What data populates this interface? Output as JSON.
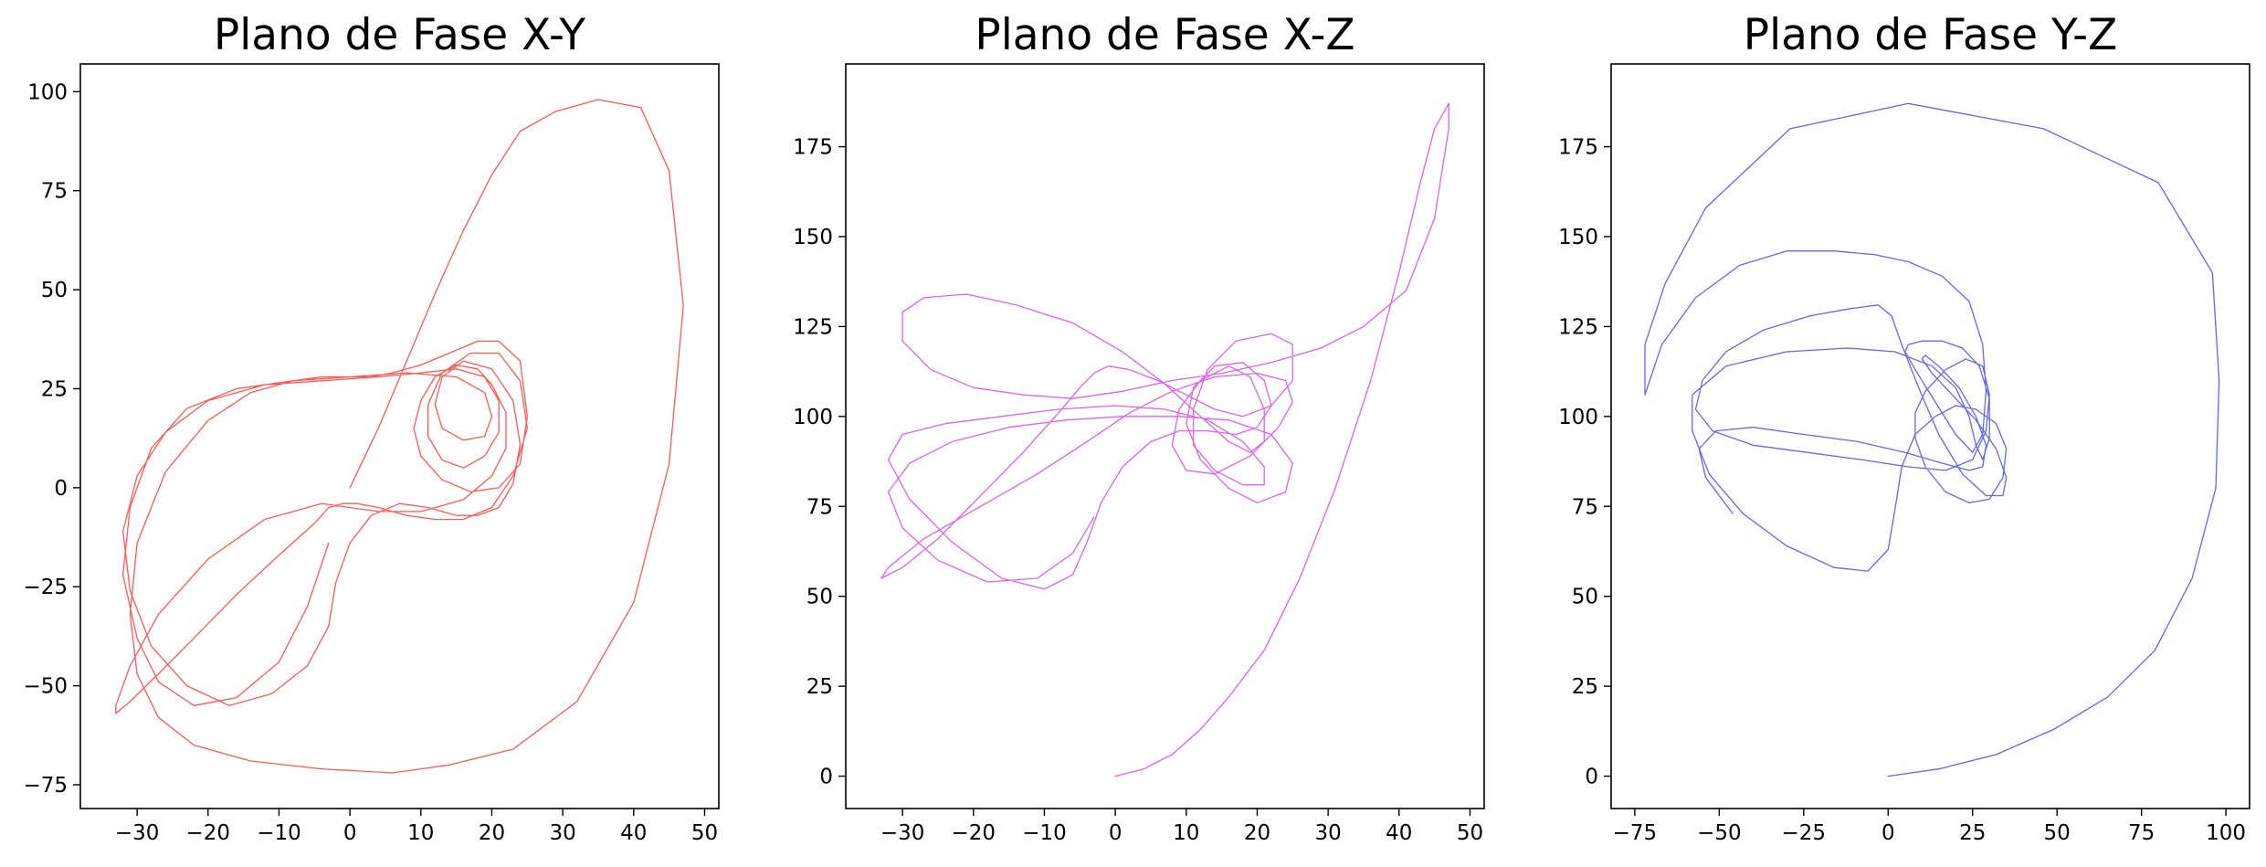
{
  "chart_data": [
    {
      "type": "line",
      "title": "Plano de Fase X-Y",
      "xlabel": "",
      "ylabel": "",
      "xlim": [
        -38,
        52
      ],
      "ylim": [
        -81,
        107
      ],
      "xticks": [
        -30,
        -20,
        -10,
        0,
        10,
        20,
        30,
        40,
        50
      ],
      "yticks": [
        -75,
        -50,
        -25,
        0,
        25,
        50,
        75,
        100
      ],
      "xtick_labels": [
        "−30",
        "−20",
        "−10",
        "0",
        "10",
        "20",
        "30",
        "40",
        "50"
      ],
      "ytick_labels": [
        "−75",
        "−50",
        "−25",
        "0",
        "25",
        "50",
        "75",
        "100"
      ],
      "grid": false,
      "series": [
        {
          "color": "#ff3b3b",
          "x": [
            0,
            4,
            8,
            12,
            16,
            20,
            24,
            29,
            35,
            41,
            45,
            47,
            45,
            40,
            32,
            23,
            14,
            6,
            -4,
            -14,
            -22,
            -27,
            -30,
            -31,
            -30,
            -26,
            -20,
            -14,
            -8,
            -4,
            -2,
            0,
            3,
            6,
            10,
            14,
            18,
            21,
            24,
            25,
            24,
            21,
            17,
            13,
            10,
            9,
            10,
            12,
            15,
            18,
            20,
            22,
            22,
            20,
            16,
            10,
            4,
            -4,
            -12,
            -20,
            -27,
            -31,
            -33,
            -33,
            -31,
            -27,
            -22,
            -16,
            -10,
            -5,
            -3,
            -1,
            1,
            4,
            8,
            12,
            16,
            20,
            23,
            25,
            24,
            21,
            17,
            13,
            11,
            11,
            13,
            16,
            19,
            21,
            21,
            19,
            15,
            10,
            4,
            -4,
            -12,
            -20,
            -26,
            -30,
            -32,
            -31,
            -28,
            -23,
            -17,
            -11,
            -6,
            -3,
            -2,
            0,
            3,
            7,
            11,
            15,
            18,
            21,
            23,
            24,
            23,
            20,
            16,
            13,
            12,
            13,
            16,
            19,
            20,
            19,
            15,
            8,
            0,
            -8,
            -16,
            -23,
            -28,
            -31,
            -32,
            -30,
            -27,
            -22,
            -16,
            -10,
            -6,
            -3
          ],
          "y": [
            0,
            15,
            32,
            49,
            65,
            79,
            90,
            95,
            98,
            96,
            80,
            46,
            6,
            -29,
            -54,
            -66,
            -70,
            -72,
            -71,
            -69,
            -65,
            -58,
            -47,
            -32,
            -14,
            4,
            17,
            24,
            27,
            28,
            28,
            28,
            28,
            29,
            31,
            34,
            37,
            37,
            32,
            18,
            6,
            0,
            -1,
            2,
            8,
            15,
            22,
            28,
            31,
            30,
            26,
            19,
            10,
            3,
            -3,
            -6,
            -6,
            -4,
            -8,
            -18,
            -32,
            -45,
            -55,
            -57,
            -54,
            -47,
            -38,
            -27,
            -17,
            -9,
            -5,
            -4,
            -4,
            -5,
            -7,
            -8,
            -8,
            -5,
            3,
            15,
            27,
            34,
            34,
            29,
            21,
            13,
            7,
            5,
            8,
            14,
            22,
            28,
            30,
            29,
            28,
            27,
            26,
            22,
            14,
            3,
            -11,
            -26,
            -40,
            -50,
            -55,
            -52,
            -45,
            -35,
            -24,
            -14,
            -7,
            -4,
            -5,
            -7,
            -7,
            -5,
            1,
            11,
            22,
            30,
            32,
            28,
            21,
            15,
            12,
            13,
            18,
            24,
            28,
            29,
            28,
            27,
            25,
            20,
            10,
            -5,
            -22,
            -38,
            -49,
            -55,
            -53,
            -44,
            -30,
            -14
          ]
        }
      ]
    },
    {
      "type": "line",
      "title": "Plano de Fase X-Z",
      "xlabel": "",
      "ylabel": "",
      "xlim": [
        -38,
        52
      ],
      "ylim": [
        -9,
        198
      ],
      "xticks": [
        -30,
        -20,
        -10,
        0,
        10,
        20,
        30,
        40,
        50
      ],
      "yticks": [
        0,
        25,
        50,
        75,
        100,
        125,
        150,
        175
      ],
      "xtick_labels": [
        "−30",
        "−20",
        "−10",
        "0",
        "10",
        "20",
        "30",
        "40",
        "50"
      ],
      "ytick_labels": [
        "0",
        "25",
        "50",
        "75",
        "100",
        "125",
        "150",
        "175"
      ],
      "grid": false,
      "series": [
        {
          "color": "#d946e8",
          "x": [
            0,
            4,
            8,
            12,
            16,
            21,
            26,
            31,
            36,
            40,
            43,
            45,
            47,
            47,
            45,
            41,
            35,
            29,
            22,
            15,
            8,
            1,
            -6,
            -13,
            -20,
            -26,
            -30,
            -30,
            -27,
            -21,
            -14,
            -6,
            1,
            7,
            12,
            16,
            19,
            21,
            21,
            19,
            16,
            12,
            9,
            8,
            10,
            14,
            19,
            23,
            25,
            24,
            20,
            14,
            8,
            2,
            -4,
            -11,
            -19,
            -27,
            -32,
            -33,
            -30,
            -25,
            -19,
            -13,
            -8,
            -5,
            -3,
            -1,
            2,
            6,
            10,
            14,
            18,
            22,
            25,
            25,
            22,
            17,
            13,
            11,
            11,
            14,
            18,
            21,
            21,
            18,
            13,
            7,
            0,
            -8,
            -16,
            -24,
            -30,
            -32,
            -29,
            -23,
            -16,
            -10,
            -6,
            -4,
            -2,
            1,
            5,
            9,
            13,
            17,
            20,
            22,
            21,
            18,
            14,
            11,
            10,
            12,
            16,
            20,
            24,
            25,
            22,
            16,
            9,
            1,
            -7,
            -15,
            -23,
            -29,
            -32,
            -30,
            -25,
            -18,
            -11,
            -6,
            -3
          ],
          "y": [
            0,
            2,
            6,
            13,
            22,
            35,
            55,
            80,
            110,
            140,
            165,
            180,
            187,
            180,
            155,
            135,
            125,
            119,
            115,
            112,
            110,
            107,
            105,
            106,
            108,
            113,
            121,
            129,
            133,
            134,
            131,
            126,
            118,
            109,
            100,
            93,
            90,
            93,
            102,
            111,
            114,
            110,
            102,
            92,
            85,
            84,
            89,
            97,
            104,
            110,
            112,
            111,
            107,
            101,
            93,
            84,
            75,
            66,
            58,
            55,
            58,
            66,
            78,
            90,
            101,
            108,
            112,
            114,
            113,
            110,
            106,
            102,
            100,
            103,
            110,
            120,
            123,
            121,
            113,
            102,
            92,
            85,
            81,
            81,
            86,
            93,
            99,
            102,
            103,
            102,
            100,
            98,
            95,
            88,
            77,
            65,
            55,
            52,
            56,
            65,
            76,
            86,
            93,
            96,
            96,
            95,
            97,
            103,
            110,
            115,
            114,
            108,
            98,
            88,
            80,
            76,
            79,
            87,
            95,
            99,
            100,
            100,
            99,
            97,
            93,
            87,
            79,
            69,
            60,
            54,
            55,
            62,
            72
          ]
        }
      ]
    },
    {
      "type": "line",
      "title": "Plano de Fase Y-Z",
      "xlabel": "",
      "ylabel": "",
      "xlim": [
        -82,
        107
      ],
      "ylim": [
        -9,
        198
      ],
      "xticks": [
        -75,
        -50,
        -25,
        0,
        25,
        50,
        75,
        100
      ],
      "yticks": [
        0,
        25,
        50,
        75,
        100,
        125,
        150,
        175
      ],
      "xtick_labels": [
        "−75",
        "−50",
        "−25",
        "0",
        "25",
        "50",
        "75",
        "100"
      ],
      "ytick_labels": [
        "0",
        "25",
        "50",
        "75",
        "100",
        "125",
        "150",
        "175"
      ],
      "grid": false,
      "series": [
        {
          "color": "#4b4be8",
          "x": [
            0,
            15,
            32,
            49,
            65,
            79,
            90,
            97,
            98,
            96,
            80,
            46,
            6,
            -29,
            -54,
            -66,
            -72,
            -72,
            -67,
            -57,
            -44,
            -30,
            -16,
            -4,
            6,
            16,
            24,
            28,
            29,
            28,
            25,
            20,
            14,
            8,
            5,
            6,
            10,
            16,
            22,
            27,
            30,
            30,
            28,
            26,
            24,
            20,
            13,
            2,
            -12,
            -30,
            -48,
            -58,
            -58,
            -53,
            -43,
            -30,
            -16,
            -6,
            0,
            2,
            4,
            8,
            14,
            20,
            26,
            32,
            35,
            34,
            30,
            24,
            17,
            11,
            8,
            8,
            11,
            17,
            23,
            28,
            30,
            29,
            25,
            17,
            6,
            -8,
            -24,
            -40,
            -52,
            -57,
            -55,
            -48,
            -37,
            -23,
            -11,
            -3,
            1,
            4,
            9,
            15,
            22,
            29,
            34,
            35,
            32,
            26,
            19,
            13,
            10,
            11,
            15,
            21,
            26,
            29,
            28,
            24,
            16,
            5,
            -9,
            -25,
            -40,
            -51,
            -56,
            -54,
            -46
          ],
          "y": [
            0,
            2,
            6,
            13,
            22,
            35,
            55,
            80,
            110,
            140,
            165,
            180,
            187,
            180,
            158,
            137,
            120,
            106,
            120,
            133,
            142,
            146,
            146,
            145,
            143,
            139,
            132,
            120,
            107,
            95,
            90,
            95,
            104,
            113,
            118,
            120,
            121,
            121,
            119,
            114,
            105,
            94,
            88,
            92,
            100,
            108,
            114,
            118,
            119,
            118,
            114,
            106,
            96,
            84,
            73,
            64,
            58,
            57,
            63,
            74,
            86,
            95,
            100,
            103,
            102,
            98,
            91,
            83,
            77,
            76,
            79,
            86,
            94,
            101,
            107,
            113,
            116,
            114,
            106,
            96,
            88,
            85,
            86,
            88,
            90,
            92,
            96,
            102,
            110,
            118,
            124,
            128,
            130,
            131,
            128,
            120,
            108,
            95,
            84,
            78,
            78,
            83,
            91,
            99,
            106,
            112,
            116,
            117,
            114,
            108,
            100,
            92,
            86,
            85,
            87,
            90,
            93,
            95,
            97,
            96,
            91,
            83,
            73
          ]
        }
      ]
    }
  ]
}
